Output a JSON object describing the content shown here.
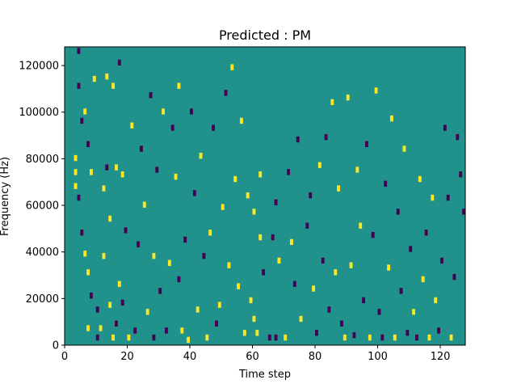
{
  "chart_data": {
    "type": "heatmap",
    "title": "Predicted : PM",
    "xlabel": "Time step",
    "ylabel": "Frequency (Hz)",
    "xlim": [
      0,
      128
    ],
    "ylim": [
      0,
      128000
    ],
    "x_ticks": [
      {
        "value": 0,
        "label": "0"
      },
      {
        "value": 20,
        "label": "20"
      },
      {
        "value": 40,
        "label": "40"
      },
      {
        "value": 60,
        "label": "60"
      },
      {
        "value": 80,
        "label": "80"
      },
      {
        "value": 100,
        "label": "100"
      },
      {
        "value": 120,
        "label": "120"
      }
    ],
    "y_ticks": [
      {
        "value": 0,
        "label": "0"
      },
      {
        "value": 20000,
        "label": "20000"
      },
      {
        "value": 40000,
        "label": "40000"
      },
      {
        "value": 60000,
        "label": "60000"
      },
      {
        "value": 80000,
        "label": "80000"
      },
      {
        "value": 100000,
        "label": "100000"
      },
      {
        "value": 120000,
        "label": "120000"
      }
    ],
    "colormap": {
      "low": "#440154",
      "mid": "#21918c",
      "high": "#fde725"
    },
    "background_level": "mid",
    "cells": [
      {
        "t": 3,
        "f": 79000,
        "level": "high"
      },
      {
        "t": 3,
        "f": 73000,
        "level": "high"
      },
      {
        "t": 3,
        "f": 67000,
        "level": "high"
      },
      {
        "t": 4,
        "f": 62000,
        "level": "low"
      },
      {
        "t": 4,
        "f": 110000,
        "level": "low"
      },
      {
        "t": 4,
        "f": 125000,
        "level": "low"
      },
      {
        "t": 5,
        "f": 47000,
        "level": "low"
      },
      {
        "t": 5,
        "f": 95000,
        "level": "low"
      },
      {
        "t": 6,
        "f": 38000,
        "level": "high"
      },
      {
        "t": 6,
        "f": 99000,
        "level": "high"
      },
      {
        "t": 7,
        "f": 30000,
        "level": "high"
      },
      {
        "t": 7,
        "f": 85000,
        "level": "low"
      },
      {
        "t": 7,
        "f": 6000,
        "level": "high"
      },
      {
        "t": 8,
        "f": 20000,
        "level": "low"
      },
      {
        "t": 8,
        "f": 73000,
        "level": "high"
      },
      {
        "t": 9,
        "f": 113000,
        "level": "high"
      },
      {
        "t": 10,
        "f": 2000,
        "level": "low"
      },
      {
        "t": 10,
        "f": 14000,
        "level": "low"
      },
      {
        "t": 11,
        "f": 6000,
        "level": "high"
      },
      {
        "t": 12,
        "f": 37000,
        "level": "high"
      },
      {
        "t": 12,
        "f": 66000,
        "level": "high"
      },
      {
        "t": 13,
        "f": 114000,
        "level": "high"
      },
      {
        "t": 13,
        "f": 75000,
        "level": "low"
      },
      {
        "t": 14,
        "f": 16000,
        "level": "high"
      },
      {
        "t": 14,
        "f": 53000,
        "level": "high"
      },
      {
        "t": 15,
        "f": 110000,
        "level": "high"
      },
      {
        "t": 15,
        "f": 2000,
        "level": "high"
      },
      {
        "t": 16,
        "f": 8000,
        "level": "low"
      },
      {
        "t": 16,
        "f": 75000,
        "level": "high"
      },
      {
        "t": 17,
        "f": 25000,
        "level": "high"
      },
      {
        "t": 17,
        "f": 120000,
        "level": "low"
      },
      {
        "t": 18,
        "f": 17000,
        "level": "low"
      },
      {
        "t": 18,
        "f": 72000,
        "level": "high"
      },
      {
        "t": 19,
        "f": 48000,
        "level": "low"
      },
      {
        "t": 20,
        "f": 2000,
        "level": "high"
      },
      {
        "t": 21,
        "f": 93000,
        "level": "high"
      },
      {
        "t": 22,
        "f": 5000,
        "level": "low"
      },
      {
        "t": 23,
        "f": 42000,
        "level": "low"
      },
      {
        "t": 24,
        "f": 83000,
        "level": "low"
      },
      {
        "t": 25,
        "f": 59000,
        "level": "high"
      },
      {
        "t": 26,
        "f": 13000,
        "level": "high"
      },
      {
        "t": 27,
        "f": 106000,
        "level": "low"
      },
      {
        "t": 28,
        "f": 37000,
        "level": "high"
      },
      {
        "t": 28,
        "f": 2000,
        "level": "low"
      },
      {
        "t": 29,
        "f": 74000,
        "level": "low"
      },
      {
        "t": 30,
        "f": 22000,
        "level": "low"
      },
      {
        "t": 31,
        "f": 99000,
        "level": "high"
      },
      {
        "t": 32,
        "f": 5000,
        "level": "low"
      },
      {
        "t": 33,
        "f": 34000,
        "level": "high"
      },
      {
        "t": 34,
        "f": 92000,
        "level": "low"
      },
      {
        "t": 35,
        "f": 71000,
        "level": "high"
      },
      {
        "t": 36,
        "f": 27000,
        "level": "low"
      },
      {
        "t": 36,
        "f": 110000,
        "level": "high"
      },
      {
        "t": 37,
        "f": 5000,
        "level": "high"
      },
      {
        "t": 38,
        "f": 44000,
        "level": "low"
      },
      {
        "t": 39,
        "f": 1000,
        "level": "high"
      },
      {
        "t": 40,
        "f": 99000,
        "level": "low"
      },
      {
        "t": 41,
        "f": 64000,
        "level": "low"
      },
      {
        "t": 42,
        "f": 14000,
        "level": "high"
      },
      {
        "t": 43,
        "f": 80000,
        "level": "high"
      },
      {
        "t": 44,
        "f": 37000,
        "level": "low"
      },
      {
        "t": 45,
        "f": 2000,
        "level": "high"
      },
      {
        "t": 46,
        "f": 47000,
        "level": "high"
      },
      {
        "t": 47,
        "f": 92000,
        "level": "low"
      },
      {
        "t": 48,
        "f": 8000,
        "level": "low"
      },
      {
        "t": 49,
        "f": 16000,
        "level": "high"
      },
      {
        "t": 50,
        "f": 58000,
        "level": "high"
      },
      {
        "t": 51,
        "f": 107000,
        "level": "low"
      },
      {
        "t": 52,
        "f": 33000,
        "level": "high"
      },
      {
        "t": 53,
        "f": 118000,
        "level": "high"
      },
      {
        "t": 54,
        "f": 70000,
        "level": "high"
      },
      {
        "t": 55,
        "f": 24000,
        "level": "high"
      },
      {
        "t": 56,
        "f": 95000,
        "level": "high"
      },
      {
        "t": 57,
        "f": 4000,
        "level": "high"
      },
      {
        "t": 58,
        "f": 63000,
        "level": "high"
      },
      {
        "t": 59,
        "f": 18000,
        "level": "high"
      },
      {
        "t": 60,
        "f": 10000,
        "level": "high"
      },
      {
        "t": 60,
        "f": 56000,
        "level": "high"
      },
      {
        "t": 61,
        "f": 4000,
        "level": "high"
      },
      {
        "t": 62,
        "f": 45000,
        "level": "high"
      },
      {
        "t": 62,
        "f": 72000,
        "level": "high"
      },
      {
        "t": 63,
        "f": 30000,
        "level": "low"
      },
      {
        "t": 65,
        "f": 2000,
        "level": "low"
      },
      {
        "t": 66,
        "f": 45000,
        "level": "low"
      },
      {
        "t": 67,
        "f": 2000,
        "level": "low"
      },
      {
        "t": 67,
        "f": 60000,
        "level": "low"
      },
      {
        "t": 68,
        "f": 35000,
        "level": "high"
      },
      {
        "t": 70,
        "f": 2000,
        "level": "high"
      },
      {
        "t": 71,
        "f": 73000,
        "level": "low"
      },
      {
        "t": 72,
        "f": 43000,
        "level": "high"
      },
      {
        "t": 73,
        "f": 25000,
        "level": "low"
      },
      {
        "t": 74,
        "f": 87000,
        "level": "low"
      },
      {
        "t": 75,
        "f": 10000,
        "level": "high"
      },
      {
        "t": 77,
        "f": 50000,
        "level": "low"
      },
      {
        "t": 78,
        "f": 63000,
        "level": "low"
      },
      {
        "t": 79,
        "f": 23000,
        "level": "high"
      },
      {
        "t": 80,
        "f": 4000,
        "level": "low"
      },
      {
        "t": 81,
        "f": 76000,
        "level": "high"
      },
      {
        "t": 82,
        "f": 35000,
        "level": "low"
      },
      {
        "t": 83,
        "f": 88000,
        "level": "low"
      },
      {
        "t": 84,
        "f": 14000,
        "level": "low"
      },
      {
        "t": 85,
        "f": 103000,
        "level": "high"
      },
      {
        "t": 86,
        "f": 30000,
        "level": "high"
      },
      {
        "t": 87,
        "f": 66000,
        "level": "high"
      },
      {
        "t": 88,
        "f": 8000,
        "level": "low"
      },
      {
        "t": 89,
        "f": 2000,
        "level": "high"
      },
      {
        "t": 90,
        "f": 105000,
        "level": "high"
      },
      {
        "t": 91,
        "f": 33000,
        "level": "high"
      },
      {
        "t": 92,
        "f": 3000,
        "level": "low"
      },
      {
        "t": 93,
        "f": 74000,
        "level": "high"
      },
      {
        "t": 94,
        "f": 50000,
        "level": "high"
      },
      {
        "t": 95,
        "f": 18000,
        "level": "low"
      },
      {
        "t": 96,
        "f": 85000,
        "level": "low"
      },
      {
        "t": 97,
        "f": 2000,
        "level": "high"
      },
      {
        "t": 98,
        "f": 46000,
        "level": "low"
      },
      {
        "t": 99,
        "f": 108000,
        "level": "high"
      },
      {
        "t": 100,
        "f": 13000,
        "level": "low"
      },
      {
        "t": 101,
        "f": 2000,
        "level": "low"
      },
      {
        "t": 102,
        "f": 68000,
        "level": "low"
      },
      {
        "t": 103,
        "f": 32000,
        "level": "high"
      },
      {
        "t": 104,
        "f": 96000,
        "level": "high"
      },
      {
        "t": 105,
        "f": 2000,
        "level": "high"
      },
      {
        "t": 106,
        "f": 56000,
        "level": "low"
      },
      {
        "t": 107,
        "f": 22000,
        "level": "low"
      },
      {
        "t": 108,
        "f": 83000,
        "level": "high"
      },
      {
        "t": 109,
        "f": 4000,
        "level": "low"
      },
      {
        "t": 110,
        "f": 40000,
        "level": "low"
      },
      {
        "t": 111,
        "f": 13000,
        "level": "high"
      },
      {
        "t": 112,
        "f": 2000,
        "level": "low"
      },
      {
        "t": 113,
        "f": 70000,
        "level": "high"
      },
      {
        "t": 114,
        "f": 27000,
        "level": "high"
      },
      {
        "t": 115,
        "f": 47000,
        "level": "low"
      },
      {
        "t": 116,
        "f": 2000,
        "level": "high"
      },
      {
        "t": 117,
        "f": 62000,
        "level": "high"
      },
      {
        "t": 118,
        "f": 18000,
        "level": "high"
      },
      {
        "t": 119,
        "f": 5000,
        "level": "low"
      },
      {
        "t": 120,
        "f": 35000,
        "level": "low"
      },
      {
        "t": 121,
        "f": 92000,
        "level": "low"
      },
      {
        "t": 122,
        "f": 62000,
        "level": "low"
      },
      {
        "t": 123,
        "f": 2000,
        "level": "high"
      },
      {
        "t": 124,
        "f": 28000,
        "level": "low"
      },
      {
        "t": 125,
        "f": 88000,
        "level": "low"
      },
      {
        "t": 126,
        "f": 72000,
        "level": "low"
      },
      {
        "t": 127,
        "f": 56000,
        "level": "low"
      }
    ]
  }
}
